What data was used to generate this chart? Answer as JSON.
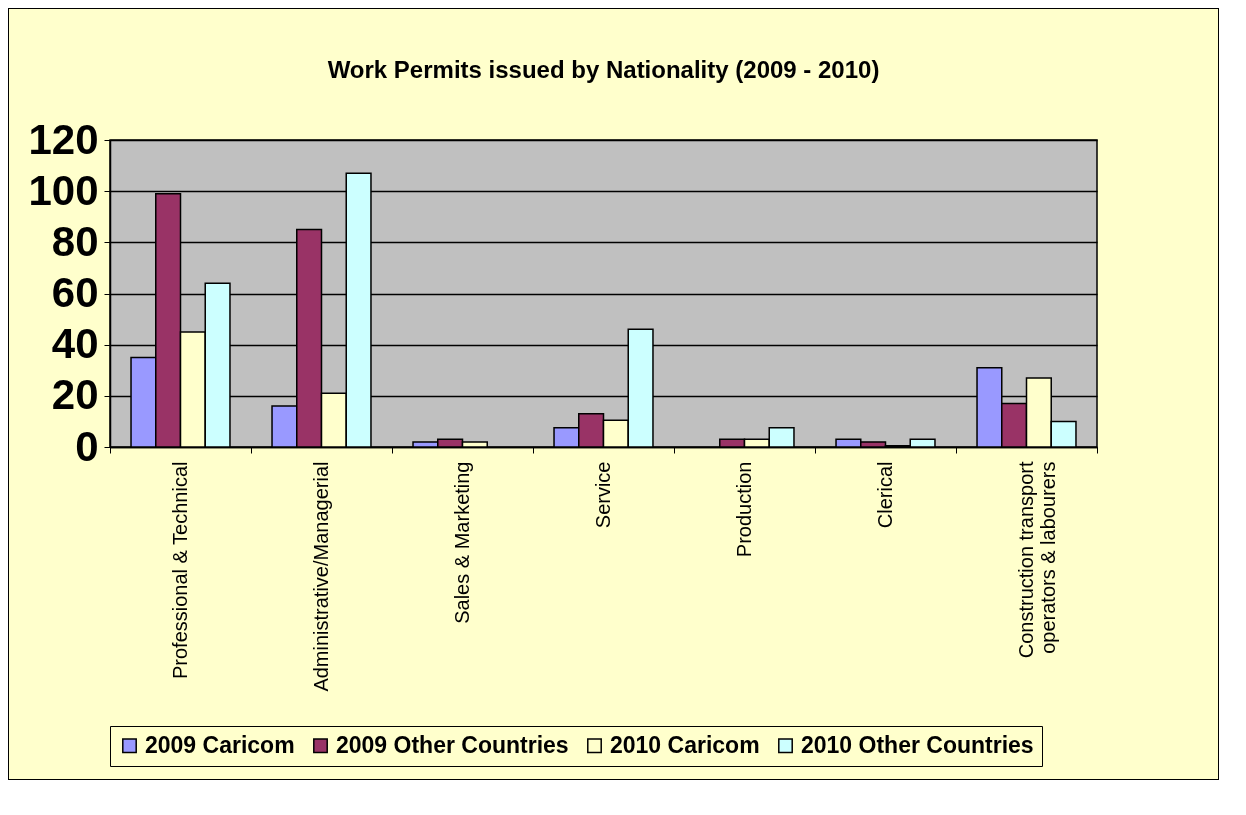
{
  "chart_data": {
    "type": "bar",
    "title": "Work Permits issued by Nationality (2009 - 2010)",
    "categories": [
      "Professional & Technical",
      "Administrative/Managerial",
      "Sales & Marketing",
      "Service",
      "Production",
      "Clerical",
      "Construction transport operators & labourers"
    ],
    "series": [
      {
        "name": "2009 Caricom",
        "color": "#9999ff",
        "values": [
          35,
          16,
          2,
          7.5,
          null,
          3,
          31
        ]
      },
      {
        "name": "2009 Other Countries",
        "color": "#993366",
        "values": [
          99,
          85,
          3,
          13,
          3,
          2,
          17
        ]
      },
      {
        "name": "2010 Caricom",
        "color": "#ffffcc",
        "values": [
          45,
          21,
          2,
          10.5,
          3,
          0.5,
          27
        ]
      },
      {
        "name": "2010 Other Countries",
        "color": "#ccffff",
        "values": [
          64,
          107,
          null,
          46,
          7.5,
          3,
          10
        ]
      }
    ],
    "ylim": [
      0,
      120
    ],
    "yticks": [
      0,
      20,
      40,
      60,
      80,
      100,
      120
    ],
    "grid": "y",
    "legend": "bottom"
  }
}
